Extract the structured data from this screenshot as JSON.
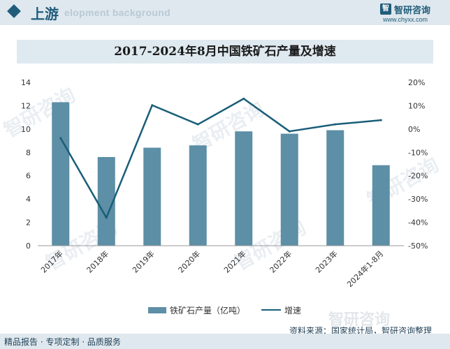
{
  "header": {
    "section": "上游",
    "subtitle_en": "elopment background",
    "logo_mark": "智",
    "logo_name": "智研咨询",
    "logo_url": "www.chyxx.com"
  },
  "watermark": "智研咨询",
  "legend": {
    "bar_label": "铁矿石产量（亿吨）",
    "line_label": "增速"
  },
  "footer": {
    "left_text": "精品报告 · 专项定制 · 品质服务",
    "source_text": "资料来源：国家统计局，智研咨询整理",
    "logo_text": "智研咨询"
  },
  "colors": {
    "bar": "#5d8fa6",
    "line": "#1a5e78",
    "accent": "#1f5c7a"
  },
  "chart_data": {
    "type": "bar",
    "title": "2017-2024年8月中国铁矿石产量及增速",
    "categories": [
      "2017年",
      "2018年",
      "2019年",
      "2020年",
      "2021年",
      "2022年",
      "2023年",
      "2024年1-8月"
    ],
    "series": [
      {
        "name": "铁矿石产量（亿吨）",
        "type": "bar",
        "axis": "left",
        "values": [
          12.3,
          7.6,
          8.4,
          8.6,
          9.8,
          9.6,
          9.9,
          6.9
        ]
      },
      {
        "name": "增速",
        "type": "line",
        "axis": "right",
        "values": [
          -3.9,
          -38.0,
          10.2,
          2.0,
          13.0,
          -1.0,
          2.0,
          3.8
        ]
      }
    ],
    "ylim_left": [
      0,
      14
    ],
    "yticks_left": [
      "0",
      "2",
      "4",
      "6",
      "8",
      "10",
      "12",
      "14"
    ],
    "ylim_right": [
      -50,
      20
    ],
    "yticks_right": [
      "-50%",
      "-40%",
      "-30%",
      "-20%",
      "-10%",
      "0%",
      "10%",
      "20%"
    ],
    "grid": false
  }
}
